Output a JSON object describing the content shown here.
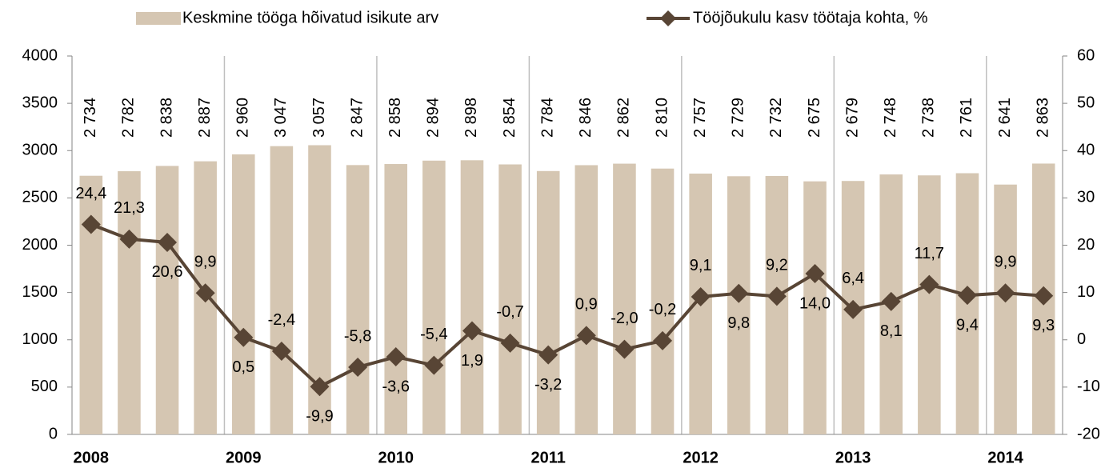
{
  "chart_data": {
    "type": "combo",
    "categories": [
      "2008",
      null,
      null,
      null,
      "2009",
      null,
      null,
      null,
      "2010",
      null,
      null,
      null,
      "2011",
      null,
      null,
      null,
      "2012",
      null,
      null,
      null,
      "2013",
      null,
      null,
      null,
      "2014",
      null
    ],
    "series": [
      {
        "name": "Keskmine tööga hõivatud isikute arv",
        "type": "bar",
        "color": "#d5c6b2",
        "values": [
          2734,
          2782,
          2838,
          2887,
          2960,
          3047,
          3057,
          2847,
          2858,
          2894,
          2898,
          2854,
          2784,
          2846,
          2862,
          2810,
          2757,
          2729,
          2732,
          2675,
          2679,
          2748,
          2738,
          2761,
          2641,
          2863
        ],
        "value_labels": [
          "2 734",
          "2 782",
          "2 838",
          "2 887",
          "2 960",
          "3 047",
          "3 057",
          "2 847",
          "2 858",
          "2 894",
          "2 898",
          "2 854",
          "2 784",
          "2 846",
          "2 862",
          "2 810",
          "2 757",
          "2 729",
          "2 732",
          "2 675",
          "2 679",
          "2 748",
          "2 738",
          "2 761",
          "2 641",
          "2 863"
        ]
      },
      {
        "name": "Tööjõukulu kasv töötaja kohta, %",
        "type": "line",
        "axis": "y2",
        "color": "#584535",
        "values": [
          24.4,
          21.3,
          20.6,
          9.9,
          0.5,
          -2.4,
          -9.9,
          -5.8,
          -3.6,
          -5.4,
          1.9,
          -0.7,
          -3.2,
          0.9,
          -2.0,
          -0.2,
          9.1,
          9.8,
          9.2,
          14.0,
          6.4,
          8.1,
          11.7,
          9.4,
          9.9,
          9.3
        ],
        "value_labels": [
          "24,4",
          "21,3",
          "20,6",
          "9,9",
          "0,5",
          "-2,4",
          "-9,9",
          "-5,8",
          "-3,6",
          "-5,4",
          "1,9",
          "-0,7",
          "-3,2",
          "0,9",
          "-2,0",
          "-0,2",
          "9,1",
          "9,8",
          "9,2",
          "14,0",
          "6,4",
          "8,1",
          "11,7",
          "9,4",
          "9,9",
          "9,3"
        ]
      }
    ],
    "negative_label_color": "#ff0000",
    "ylim": [
      0,
      4000
    ],
    "yticks": [
      0,
      500,
      1000,
      1500,
      2000,
      2500,
      3000,
      3500,
      4000
    ],
    "y2lim": [
      -20,
      60
    ],
    "y2ticks": [
      -20,
      -10,
      0,
      10,
      20,
      30,
      40,
      50,
      60
    ],
    "legend": "top"
  }
}
